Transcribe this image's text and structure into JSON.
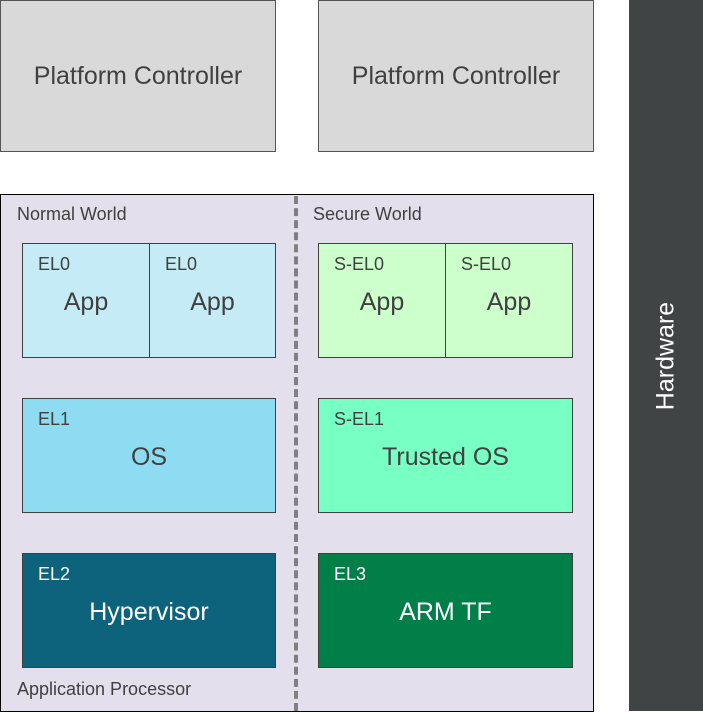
{
  "platform_controllers": [
    "Platform Controller",
    "Platform Controller"
  ],
  "hardware": "Hardware",
  "application_processor": "Application Processor",
  "normal_world": {
    "label": "Normal World",
    "el0": [
      {
        "level": "EL0",
        "name": "App"
      },
      {
        "level": "EL0",
        "name": "App"
      }
    ],
    "el1": {
      "level": "EL1",
      "name": "OS"
    },
    "el2": {
      "level": "EL2",
      "name": "Hypervisor"
    }
  },
  "secure_world": {
    "label": "Secure World",
    "el0": [
      {
        "level": "S-EL0",
        "name": "App"
      },
      {
        "level": "S-EL0",
        "name": "App"
      }
    ],
    "el1": {
      "level": "S-EL1",
      "name": "Trusted OS"
    },
    "el3": {
      "level": "EL3",
      "name": "ARM TF"
    }
  },
  "colors": {
    "el0": "#c5ecf6",
    "el1": "#8ddcf2",
    "el2": "#0d637c",
    "sel0": "#ccffcc",
    "sel1": "#77ffc4",
    "el3": "#007f48",
    "hardware": "#404444",
    "processor": "#e4dfec",
    "controller": "#d9d9d9"
  }
}
